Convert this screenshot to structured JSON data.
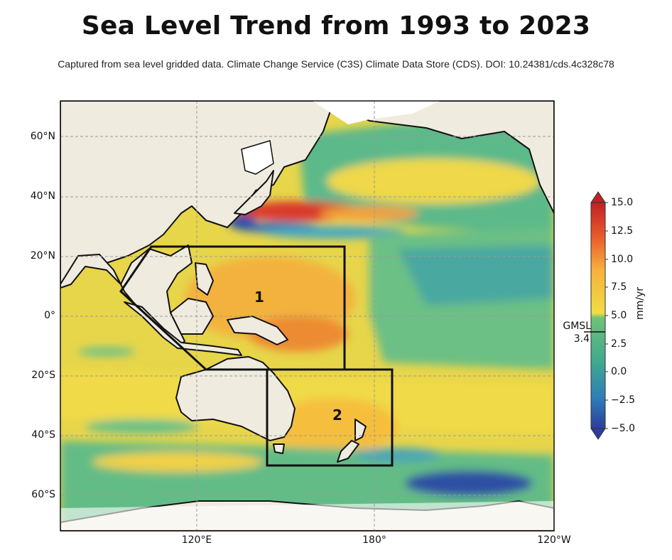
{
  "title": "Sea Level Trend from 1993 to 2023",
  "subtitle": "Captured from sea level gridded data. Climate Change Service (C3S) Climate Data Store (CDS). DOI: 10.24381/cds.4c328c78",
  "map": {
    "lat_labels": [
      "60°N",
      "40°N",
      "20°N",
      "0°",
      "20°S",
      "40°S",
      "60°S"
    ],
    "lon_labels": [
      "120°E",
      "180°",
      "120°W"
    ],
    "regions": [
      {
        "label": "1"
      },
      {
        "label": "2"
      }
    ],
    "colors": {
      "land": "#efebdf",
      "ice": "#ffffff",
      "ocean_high": "#d7301f",
      "ocean_mid": "#f6d63b",
      "ocean_low": "#4fb48a",
      "ocean_neg": "#2b50a8"
    }
  },
  "colorbar": {
    "unit": "mm/yr",
    "ticks": [
      "15.0",
      "12.5",
      "10.0",
      "7.5",
      "5.0",
      "2.5",
      "0.0",
      "−2.5",
      "−5.0"
    ],
    "range": [
      -5.0,
      15.0
    ],
    "gmsl_label": "GMSL",
    "gmsl_value": "3.4",
    "stops": [
      "#2c3e9c",
      "#2e7fb8",
      "#3ea88f",
      "#5dbd7a",
      "#f0dd45",
      "#f6b23c",
      "#e85a2a",
      "#c21f26"
    ]
  }
}
